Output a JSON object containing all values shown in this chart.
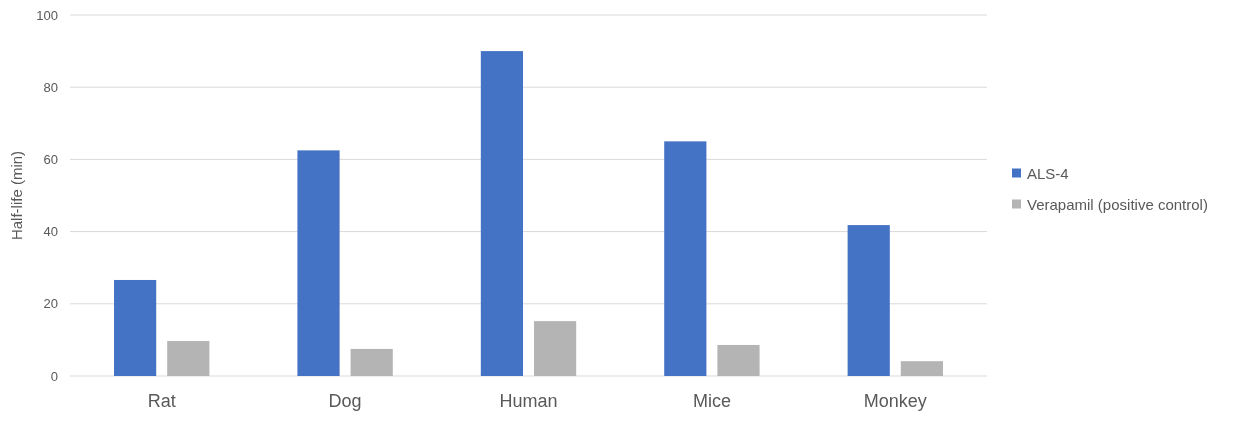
{
  "chart_data": {
    "type": "bar",
    "ylabel": "Half-life (min)",
    "categories": [
      "Rat",
      "Dog",
      "Human",
      "Mice",
      "Monkey"
    ],
    "series": [
      {
        "name": "ALS-4",
        "color": "#4472c4",
        "values": [
          26.6,
          62.5,
          90,
          65,
          41.8
        ]
      },
      {
        "name": "Verapamil (positive control)",
        "color": "#b4b4b4",
        "values": [
          9.7,
          7.5,
          15.2,
          8.6,
          4.1
        ]
      }
    ],
    "ylim": [
      0,
      100
    ],
    "yticks": [
      0,
      20,
      40,
      60,
      80,
      100
    ],
    "grid": "y",
    "legend": "right"
  }
}
